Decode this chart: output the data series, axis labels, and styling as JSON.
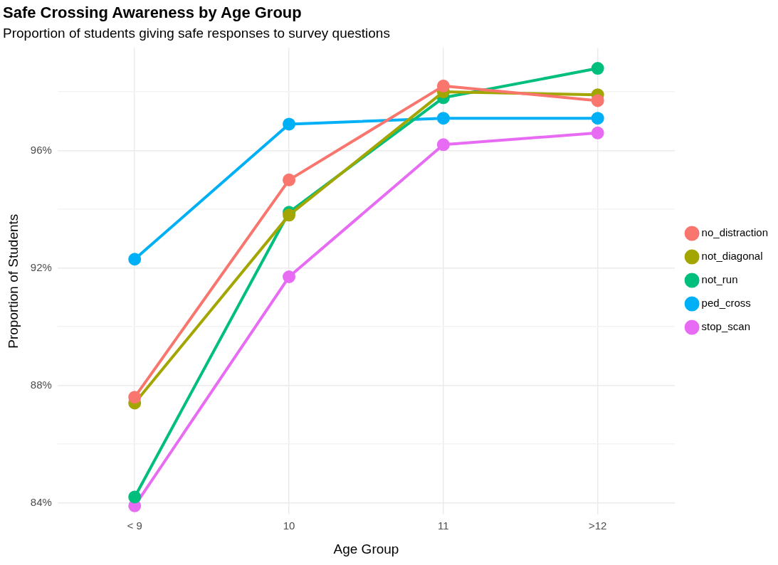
{
  "chart_data": {
    "type": "line",
    "title": "Safe Crossing Awareness by Age Group",
    "subtitle": "Proportion of students giving safe responses to survey questions",
    "xlabel": "Age Group",
    "ylabel": "Proportion of Students",
    "categories": [
      "< 9",
      "10",
      "11",
      ">12"
    ],
    "series": [
      {
        "name": "no_distraction",
        "color": "#f8766d",
        "values": [
          87.6,
          95.0,
          98.2,
          97.7
        ]
      },
      {
        "name": "not_diagonal",
        "color": "#a3a500",
        "values": [
          87.4,
          93.8,
          98.0,
          97.9
        ]
      },
      {
        "name": "not_run",
        "color": "#00bf7d",
        "values": [
          84.2,
          93.9,
          97.8,
          98.8
        ]
      },
      {
        "name": "ped_cross",
        "color": "#00b0f6",
        "values": [
          92.3,
          96.9,
          97.1,
          97.1
        ]
      },
      {
        "name": "stop_scan",
        "color": "#e76bf3",
        "values": [
          83.9,
          91.7,
          96.2,
          96.6
        ]
      }
    ],
    "ylim": [
      83.6,
      99.5
    ],
    "yticks": [
      {
        "value": 84,
        "label": "84%"
      },
      {
        "value": 86,
        "label": null
      },
      {
        "value": 88,
        "label": "88%"
      },
      {
        "value": 90,
        "label": null
      },
      {
        "value": 92,
        "label": "92%"
      },
      {
        "value": 94,
        "label": null
      },
      {
        "value": 96,
        "label": "96%"
      },
      {
        "value": 98,
        "label": null
      }
    ],
    "grid": true,
    "legend": "right",
    "marker": "circle"
  }
}
